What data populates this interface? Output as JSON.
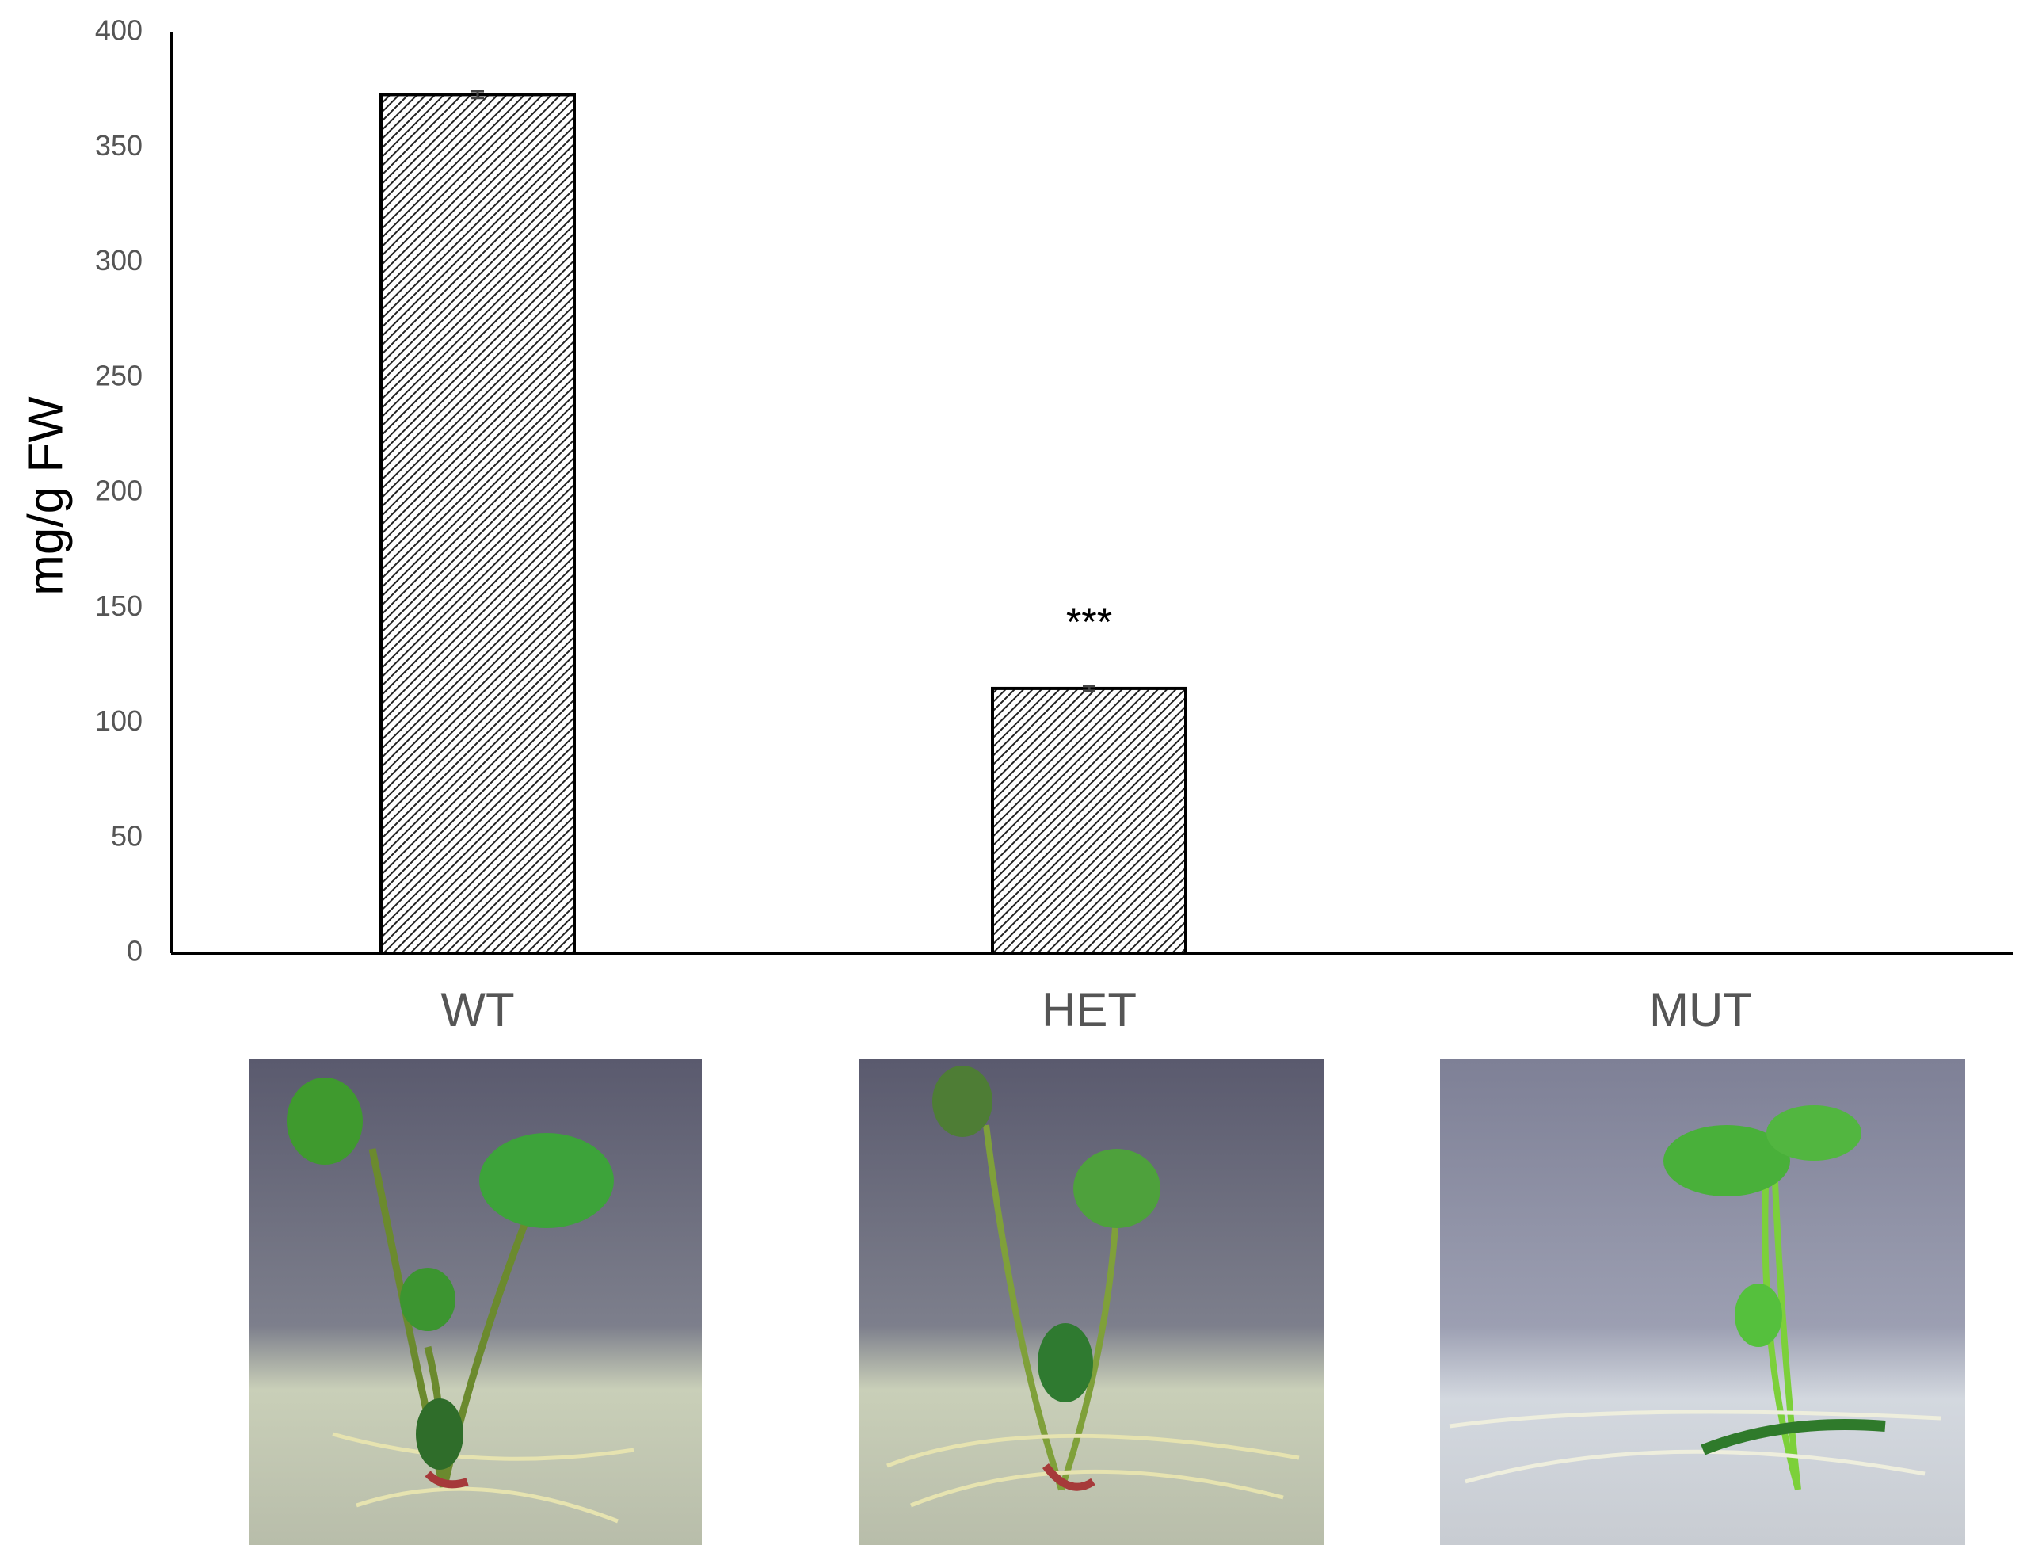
{
  "chart_data": {
    "type": "bar",
    "ylabel": "mg/g FW",
    "categories": [
      "WT",
      "HET",
      "MUT"
    ],
    "values": [
      373,
      115,
      0
    ],
    "errors": [
      1.5,
      1,
      0
    ],
    "ylim": [
      0,
      400
    ],
    "yticks": [
      0,
      50,
      100,
      150,
      200,
      250,
      300,
      350,
      400
    ],
    "grid": false,
    "color": "#000000",
    "annotations": [
      {
        "text": "***",
        "x": "HET"
      }
    ]
  }
}
